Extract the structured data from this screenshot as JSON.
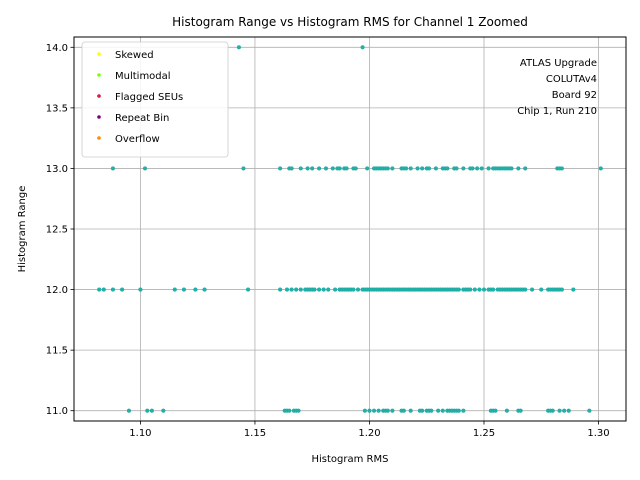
{
  "chart_data": {
    "type": "scatter",
    "title": "Histogram Range vs Histogram RMS for Channel 1 Zoomed",
    "xlabel": "Histogram RMS",
    "ylabel": "Histogram Range",
    "xlim": [
      1.071,
      1.312
    ],
    "ylim": [
      10.915,
      14.085
    ],
    "xticks": [
      "1.10",
      "1.15",
      "1.20",
      "1.25",
      "1.30"
    ],
    "xtick_values": [
      1.1,
      1.15,
      1.2,
      1.25,
      1.3
    ],
    "yticks": [
      "11.0",
      "11.5",
      "12.0",
      "12.5",
      "13.0",
      "13.5",
      "14.0"
    ],
    "ytick_values": [
      11.0,
      11.5,
      12.0,
      12.5,
      13.0,
      13.5,
      14.0
    ],
    "grid": true,
    "legend_position": "top-left",
    "legend": [
      {
        "name": "Skewed",
        "color": "#ffff00"
      },
      {
        "name": "Multimodal",
        "color": "#80ff00"
      },
      {
        "name": "Flagged SEUs",
        "color": "#dc143c"
      },
      {
        "name": "Repeat Bin",
        "color": "#800080"
      },
      {
        "name": "Overflow",
        "color": "#ff8c00"
      }
    ],
    "annotation": [
      "ATLAS Upgrade",
      "COLUTAv4",
      "Board 92",
      "Chip 1, Run 210"
    ],
    "series": [
      {
        "color": "#20b2aa",
        "points": [
          [
            1.143,
            14.0
          ],
          [
            1.197,
            14.0
          ],
          [
            1.088,
            13.0
          ],
          [
            1.102,
            13.0
          ],
          [
            1.145,
            13.0
          ],
          [
            1.161,
            13.0
          ],
          [
            1.165,
            13.0
          ],
          [
            1.166,
            13.0
          ],
          [
            1.17,
            13.0
          ],
          [
            1.173,
            13.0
          ],
          [
            1.175,
            13.0
          ],
          [
            1.178,
            13.0
          ],
          [
            1.181,
            13.0
          ],
          [
            1.184,
            13.0
          ],
          [
            1.186,
            13.0
          ],
          [
            1.187,
            13.0
          ],
          [
            1.189,
            13.0
          ],
          [
            1.19,
            13.0
          ],
          [
            1.193,
            13.0
          ],
          [
            1.194,
            13.0
          ],
          [
            1.199,
            13.0
          ],
          [
            1.202,
            13.0
          ],
          [
            1.203,
            13.0
          ],
          [
            1.204,
            13.0
          ],
          [
            1.205,
            13.0
          ],
          [
            1.206,
            13.0
          ],
          [
            1.207,
            13.0
          ],
          [
            1.208,
            13.0
          ],
          [
            1.21,
            13.0
          ],
          [
            1.214,
            13.0
          ],
          [
            1.215,
            13.0
          ],
          [
            1.216,
            13.0
          ],
          [
            1.218,
            13.0
          ],
          [
            1.221,
            13.0
          ],
          [
            1.223,
            13.0
          ],
          [
            1.225,
            13.0
          ],
          [
            1.226,
            13.0
          ],
          [
            1.229,
            13.0
          ],
          [
            1.232,
            13.0
          ],
          [
            1.233,
            13.0
          ],
          [
            1.234,
            13.0
          ],
          [
            1.237,
            13.0
          ],
          [
            1.238,
            13.0
          ],
          [
            1.241,
            13.0
          ],
          [
            1.244,
            13.0
          ],
          [
            1.245,
            13.0
          ],
          [
            1.247,
            13.0
          ],
          [
            1.249,
            13.0
          ],
          [
            1.252,
            13.0
          ],
          [
            1.254,
            13.0
          ],
          [
            1.255,
            13.0
          ],
          [
            1.256,
            13.0
          ],
          [
            1.257,
            13.0
          ],
          [
            1.258,
            13.0
          ],
          [
            1.259,
            13.0
          ],
          [
            1.26,
            13.0
          ],
          [
            1.261,
            13.0
          ],
          [
            1.262,
            13.0
          ],
          [
            1.265,
            13.0
          ],
          [
            1.268,
            13.0
          ],
          [
            1.282,
            13.0
          ],
          [
            1.283,
            13.0
          ],
          [
            1.284,
            13.0
          ],
          [
            1.301,
            13.0
          ],
          [
            1.082,
            12.0
          ],
          [
            1.084,
            12.0
          ],
          [
            1.088,
            12.0
          ],
          [
            1.092,
            12.0
          ],
          [
            1.1,
            12.0
          ],
          [
            1.115,
            12.0
          ],
          [
            1.119,
            12.0
          ],
          [
            1.124,
            12.0
          ],
          [
            1.128,
            12.0
          ],
          [
            1.147,
            12.0
          ],
          [
            1.161,
            12.0
          ],
          [
            1.164,
            12.0
          ],
          [
            1.166,
            12.0
          ],
          [
            1.168,
            12.0
          ],
          [
            1.17,
            12.0
          ],
          [
            1.172,
            12.0
          ],
          [
            1.173,
            12.0
          ],
          [
            1.174,
            12.0
          ],
          [
            1.175,
            12.0
          ],
          [
            1.176,
            12.0
          ],
          [
            1.178,
            12.0
          ],
          [
            1.18,
            12.0
          ],
          [
            1.182,
            12.0
          ],
          [
            1.185,
            12.0
          ],
          [
            1.187,
            12.0
          ],
          [
            1.188,
            12.0
          ],
          [
            1.189,
            12.0
          ],
          [
            1.19,
            12.0
          ],
          [
            1.191,
            12.0
          ],
          [
            1.192,
            12.0
          ],
          [
            1.193,
            12.0
          ],
          [
            1.195,
            12.0
          ],
          [
            1.197,
            12.0
          ],
          [
            1.198,
            12.0
          ],
          [
            1.199,
            12.0
          ],
          [
            1.2,
            12.0
          ],
          [
            1.201,
            12.0
          ],
          [
            1.202,
            12.0
          ],
          [
            1.203,
            12.0
          ],
          [
            1.204,
            12.0
          ],
          [
            1.205,
            12.0
          ],
          [
            1.206,
            12.0
          ],
          [
            1.207,
            12.0
          ],
          [
            1.208,
            12.0
          ],
          [
            1.209,
            12.0
          ],
          [
            1.21,
            12.0
          ],
          [
            1.211,
            12.0
          ],
          [
            1.212,
            12.0
          ],
          [
            1.213,
            12.0
          ],
          [
            1.214,
            12.0
          ],
          [
            1.215,
            12.0
          ],
          [
            1.216,
            12.0
          ],
          [
            1.217,
            12.0
          ],
          [
            1.218,
            12.0
          ],
          [
            1.219,
            12.0
          ],
          [
            1.22,
            12.0
          ],
          [
            1.221,
            12.0
          ],
          [
            1.222,
            12.0
          ],
          [
            1.223,
            12.0
          ],
          [
            1.224,
            12.0
          ],
          [
            1.225,
            12.0
          ],
          [
            1.226,
            12.0
          ],
          [
            1.227,
            12.0
          ],
          [
            1.228,
            12.0
          ],
          [
            1.229,
            12.0
          ],
          [
            1.23,
            12.0
          ],
          [
            1.231,
            12.0
          ],
          [
            1.232,
            12.0
          ],
          [
            1.233,
            12.0
          ],
          [
            1.234,
            12.0
          ],
          [
            1.235,
            12.0
          ],
          [
            1.236,
            12.0
          ],
          [
            1.237,
            12.0
          ],
          [
            1.238,
            12.0
          ],
          [
            1.239,
            12.0
          ],
          [
            1.241,
            12.0
          ],
          [
            1.242,
            12.0
          ],
          [
            1.243,
            12.0
          ],
          [
            1.244,
            12.0
          ],
          [
            1.246,
            12.0
          ],
          [
            1.248,
            12.0
          ],
          [
            1.25,
            12.0
          ],
          [
            1.252,
            12.0
          ],
          [
            1.253,
            12.0
          ],
          [
            1.254,
            12.0
          ],
          [
            1.256,
            12.0
          ],
          [
            1.257,
            12.0
          ],
          [
            1.258,
            12.0
          ],
          [
            1.259,
            12.0
          ],
          [
            1.26,
            12.0
          ],
          [
            1.261,
            12.0
          ],
          [
            1.262,
            12.0
          ],
          [
            1.263,
            12.0
          ],
          [
            1.264,
            12.0
          ],
          [
            1.265,
            12.0
          ],
          [
            1.266,
            12.0
          ],
          [
            1.267,
            12.0
          ],
          [
            1.268,
            12.0
          ],
          [
            1.271,
            12.0
          ],
          [
            1.275,
            12.0
          ],
          [
            1.278,
            12.0
          ],
          [
            1.279,
            12.0
          ],
          [
            1.28,
            12.0
          ],
          [
            1.281,
            12.0
          ],
          [
            1.282,
            12.0
          ],
          [
            1.283,
            12.0
          ],
          [
            1.284,
            12.0
          ],
          [
            1.289,
            12.0
          ],
          [
            1.095,
            11.0
          ],
          [
            1.103,
            11.0
          ],
          [
            1.105,
            11.0
          ],
          [
            1.11,
            11.0
          ],
          [
            1.163,
            11.0
          ],
          [
            1.164,
            11.0
          ],
          [
            1.165,
            11.0
          ],
          [
            1.167,
            11.0
          ],
          [
            1.168,
            11.0
          ],
          [
            1.169,
            11.0
          ],
          [
            1.198,
            11.0
          ],
          [
            1.2,
            11.0
          ],
          [
            1.202,
            11.0
          ],
          [
            1.204,
            11.0
          ],
          [
            1.206,
            11.0
          ],
          [
            1.207,
            11.0
          ],
          [
            1.208,
            11.0
          ],
          [
            1.21,
            11.0
          ],
          [
            1.214,
            11.0
          ],
          [
            1.215,
            11.0
          ],
          [
            1.218,
            11.0
          ],
          [
            1.222,
            11.0
          ],
          [
            1.223,
            11.0
          ],
          [
            1.225,
            11.0
          ],
          [
            1.226,
            11.0
          ],
          [
            1.227,
            11.0
          ],
          [
            1.23,
            11.0
          ],
          [
            1.232,
            11.0
          ],
          [
            1.234,
            11.0
          ],
          [
            1.235,
            11.0
          ],
          [
            1.236,
            11.0
          ],
          [
            1.237,
            11.0
          ],
          [
            1.238,
            11.0
          ],
          [
            1.239,
            11.0
          ],
          [
            1.241,
            11.0
          ],
          [
            1.253,
            11.0
          ],
          [
            1.254,
            11.0
          ],
          [
            1.255,
            11.0
          ],
          [
            1.26,
            11.0
          ],
          [
            1.265,
            11.0
          ],
          [
            1.266,
            11.0
          ],
          [
            1.278,
            11.0
          ],
          [
            1.279,
            11.0
          ],
          [
            1.28,
            11.0
          ],
          [
            1.283,
            11.0
          ],
          [
            1.285,
            11.0
          ],
          [
            1.287,
            11.0
          ],
          [
            1.296,
            11.0
          ]
        ]
      }
    ]
  }
}
